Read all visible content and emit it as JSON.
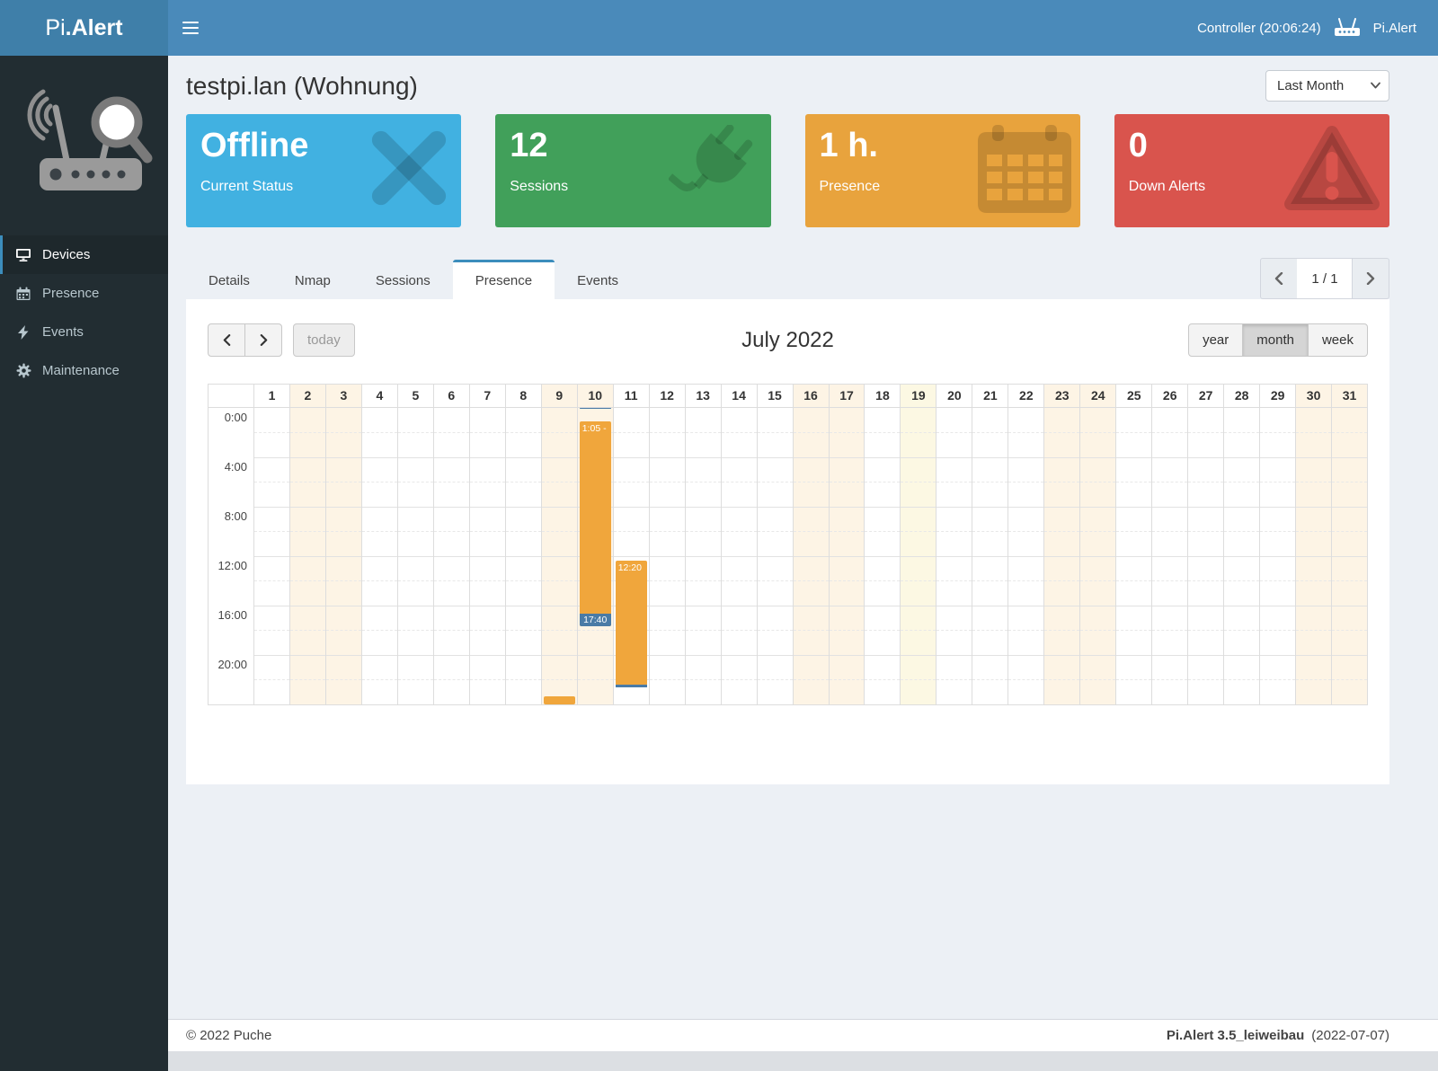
{
  "navbar": {
    "brand_light": "Pi",
    "brand_bold": ".Alert",
    "controller_status": "Controller (20:06:24)",
    "app_label": "Pi.Alert"
  },
  "sidebar": {
    "items": [
      {
        "label": "Devices",
        "active": true
      },
      {
        "label": "Presence",
        "active": false
      },
      {
        "label": "Events",
        "active": false
      },
      {
        "label": "Maintenance",
        "active": false
      }
    ]
  },
  "page": {
    "title": "testpi.lan (Wohnung)",
    "period_selected": "Last Month"
  },
  "summary_cards": [
    {
      "value": "Offline",
      "label": "Current Status",
      "color": "#41b1e1",
      "icon": "x-icon"
    },
    {
      "value": "12",
      "label": "Sessions",
      "color": "#41a05a",
      "icon": "plug-icon"
    },
    {
      "value": "1 h.",
      "label": "Presence",
      "color": "#e8a33d",
      "icon": "calendar-icon"
    },
    {
      "value": "0",
      "label": "Down Alerts",
      "color": "#d9544d",
      "icon": "warning-icon"
    }
  ],
  "tabs": [
    {
      "label": "Details",
      "active": false
    },
    {
      "label": "Nmap",
      "active": false
    },
    {
      "label": "Sessions",
      "active": false
    },
    {
      "label": "Presence",
      "active": true
    },
    {
      "label": "Events",
      "active": false
    }
  ],
  "pagination": {
    "current": "1 / 1"
  },
  "calendar": {
    "title": "July 2022",
    "today_button": "today",
    "views": [
      {
        "label": "year",
        "active": false
      },
      {
        "label": "month",
        "active": true
      },
      {
        "label": "week",
        "active": false
      }
    ],
    "day_count": 31,
    "weekend_days": [
      2,
      3,
      9,
      10,
      16,
      17,
      23,
      24,
      30,
      31
    ],
    "highlighted_day": 19,
    "time_labels": [
      "0:00",
      "4:00",
      "8:00",
      "12:00",
      "16:00",
      "20:00"
    ],
    "events": [
      {
        "day": 9,
        "start": "23:20",
        "end": "24:00",
        "type": "session"
      },
      {
        "day": 10,
        "start": "0:00",
        "end": "0:06",
        "type": "marker"
      },
      {
        "day": 10,
        "start": "1:05",
        "end": "17:40",
        "type": "session",
        "start_label": "1:05 -",
        "end_label": "17:40"
      },
      {
        "day": 11,
        "start": "12:20",
        "end": "22:30",
        "type": "session",
        "start_label": "12:20",
        "end_marker": true
      }
    ],
    "colors": {
      "session": "#f0a63c",
      "marker": "#4a7ba6",
      "weekend_bg": "#fdf4e5",
      "today_bg": "#fcf8e3"
    }
  },
  "footer": {
    "copyright": "© 2022 Puche",
    "version": "Pi.Alert 3.5_leiweibau",
    "date": "(2022-07-07)"
  }
}
